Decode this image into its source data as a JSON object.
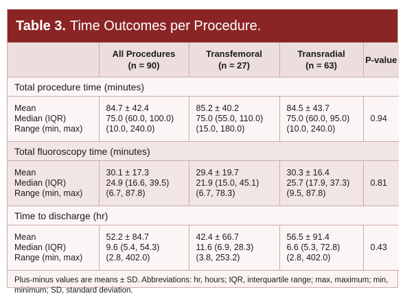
{
  "title": {
    "number": "Table 3.",
    "text": "Time Outcomes per Procedure."
  },
  "columns": [
    {
      "name": "",
      "sub": ""
    },
    {
      "name": "All Procedures",
      "sub": "(n = 90)"
    },
    {
      "name": "Transfemoral",
      "sub": "(n = 27)"
    },
    {
      "name": "Transradial",
      "sub": "(n = 63)"
    },
    {
      "name": "P-value",
      "sub": ""
    }
  ],
  "sections": [
    {
      "name": "Total procedure time (minutes)",
      "labels": [
        "Mean",
        "Median (IQR)",
        "Range (min, max)"
      ],
      "all": [
        "84.7 ± 42.4",
        "75.0 (60.0, 100.0)",
        "(10.0, 240.0)"
      ],
      "transfemoral": [
        "85.2 ± 40.2",
        "75.0 (55.0, 110.0)",
        "(15.0, 180.0)"
      ],
      "transradial": [
        "84.5 ± 43.7",
        "75.0 (60.0, 95.0)",
        "(10.0, 240.0)"
      ],
      "p": "0.94"
    },
    {
      "name": "Total fluoroscopy time (minutes)",
      "labels": [
        "Mean",
        "Median (IQR)",
        "Range (min, max)"
      ],
      "all": [
        "30.1 ± 17.3",
        "24.9 (16.6, 39.5)",
        "(6.7, 87.8)"
      ],
      "transfemoral": [
        "29.4 ± 19.7",
        "21.9 (15.0, 45.1)",
        "(6.7, 78.3)"
      ],
      "transradial": [
        "30.3 ± 16.4",
        "25.7 (17.9, 37.3)",
        "(9.5, 87.8)"
      ],
      "p": "0.81"
    },
    {
      "name": "Time to discharge (hr)",
      "labels": [
        "Mean",
        "Median (IQR)",
        "Range (min, max)"
      ],
      "all": [
        "52.2 ± 84.7",
        "9.6 (5.4, 54.3)",
        "(2.8, 402.0)"
      ],
      "transfemoral": [
        "42.4 ± 66.7",
        "11.6 (6.9, 28.3)",
        "(3.8, 253.2)"
      ],
      "transradial": [
        "56.5 ± 91.4",
        "6.6 (5.3, 72.8)",
        "(2.8, 402.0)"
      ],
      "p": "0.43"
    }
  ],
  "footnote": "Plus-minus values are means ± SD. Abbreviations: hr, hours; IQR, interquartile range; max, maximum; min, minimum; SD, standard deviation.",
  "colors": {
    "title_bg": "#8b2525",
    "header_bg": "#eddede",
    "shade_bg": "#f2e6e5",
    "border": "#c9a9a9"
  }
}
